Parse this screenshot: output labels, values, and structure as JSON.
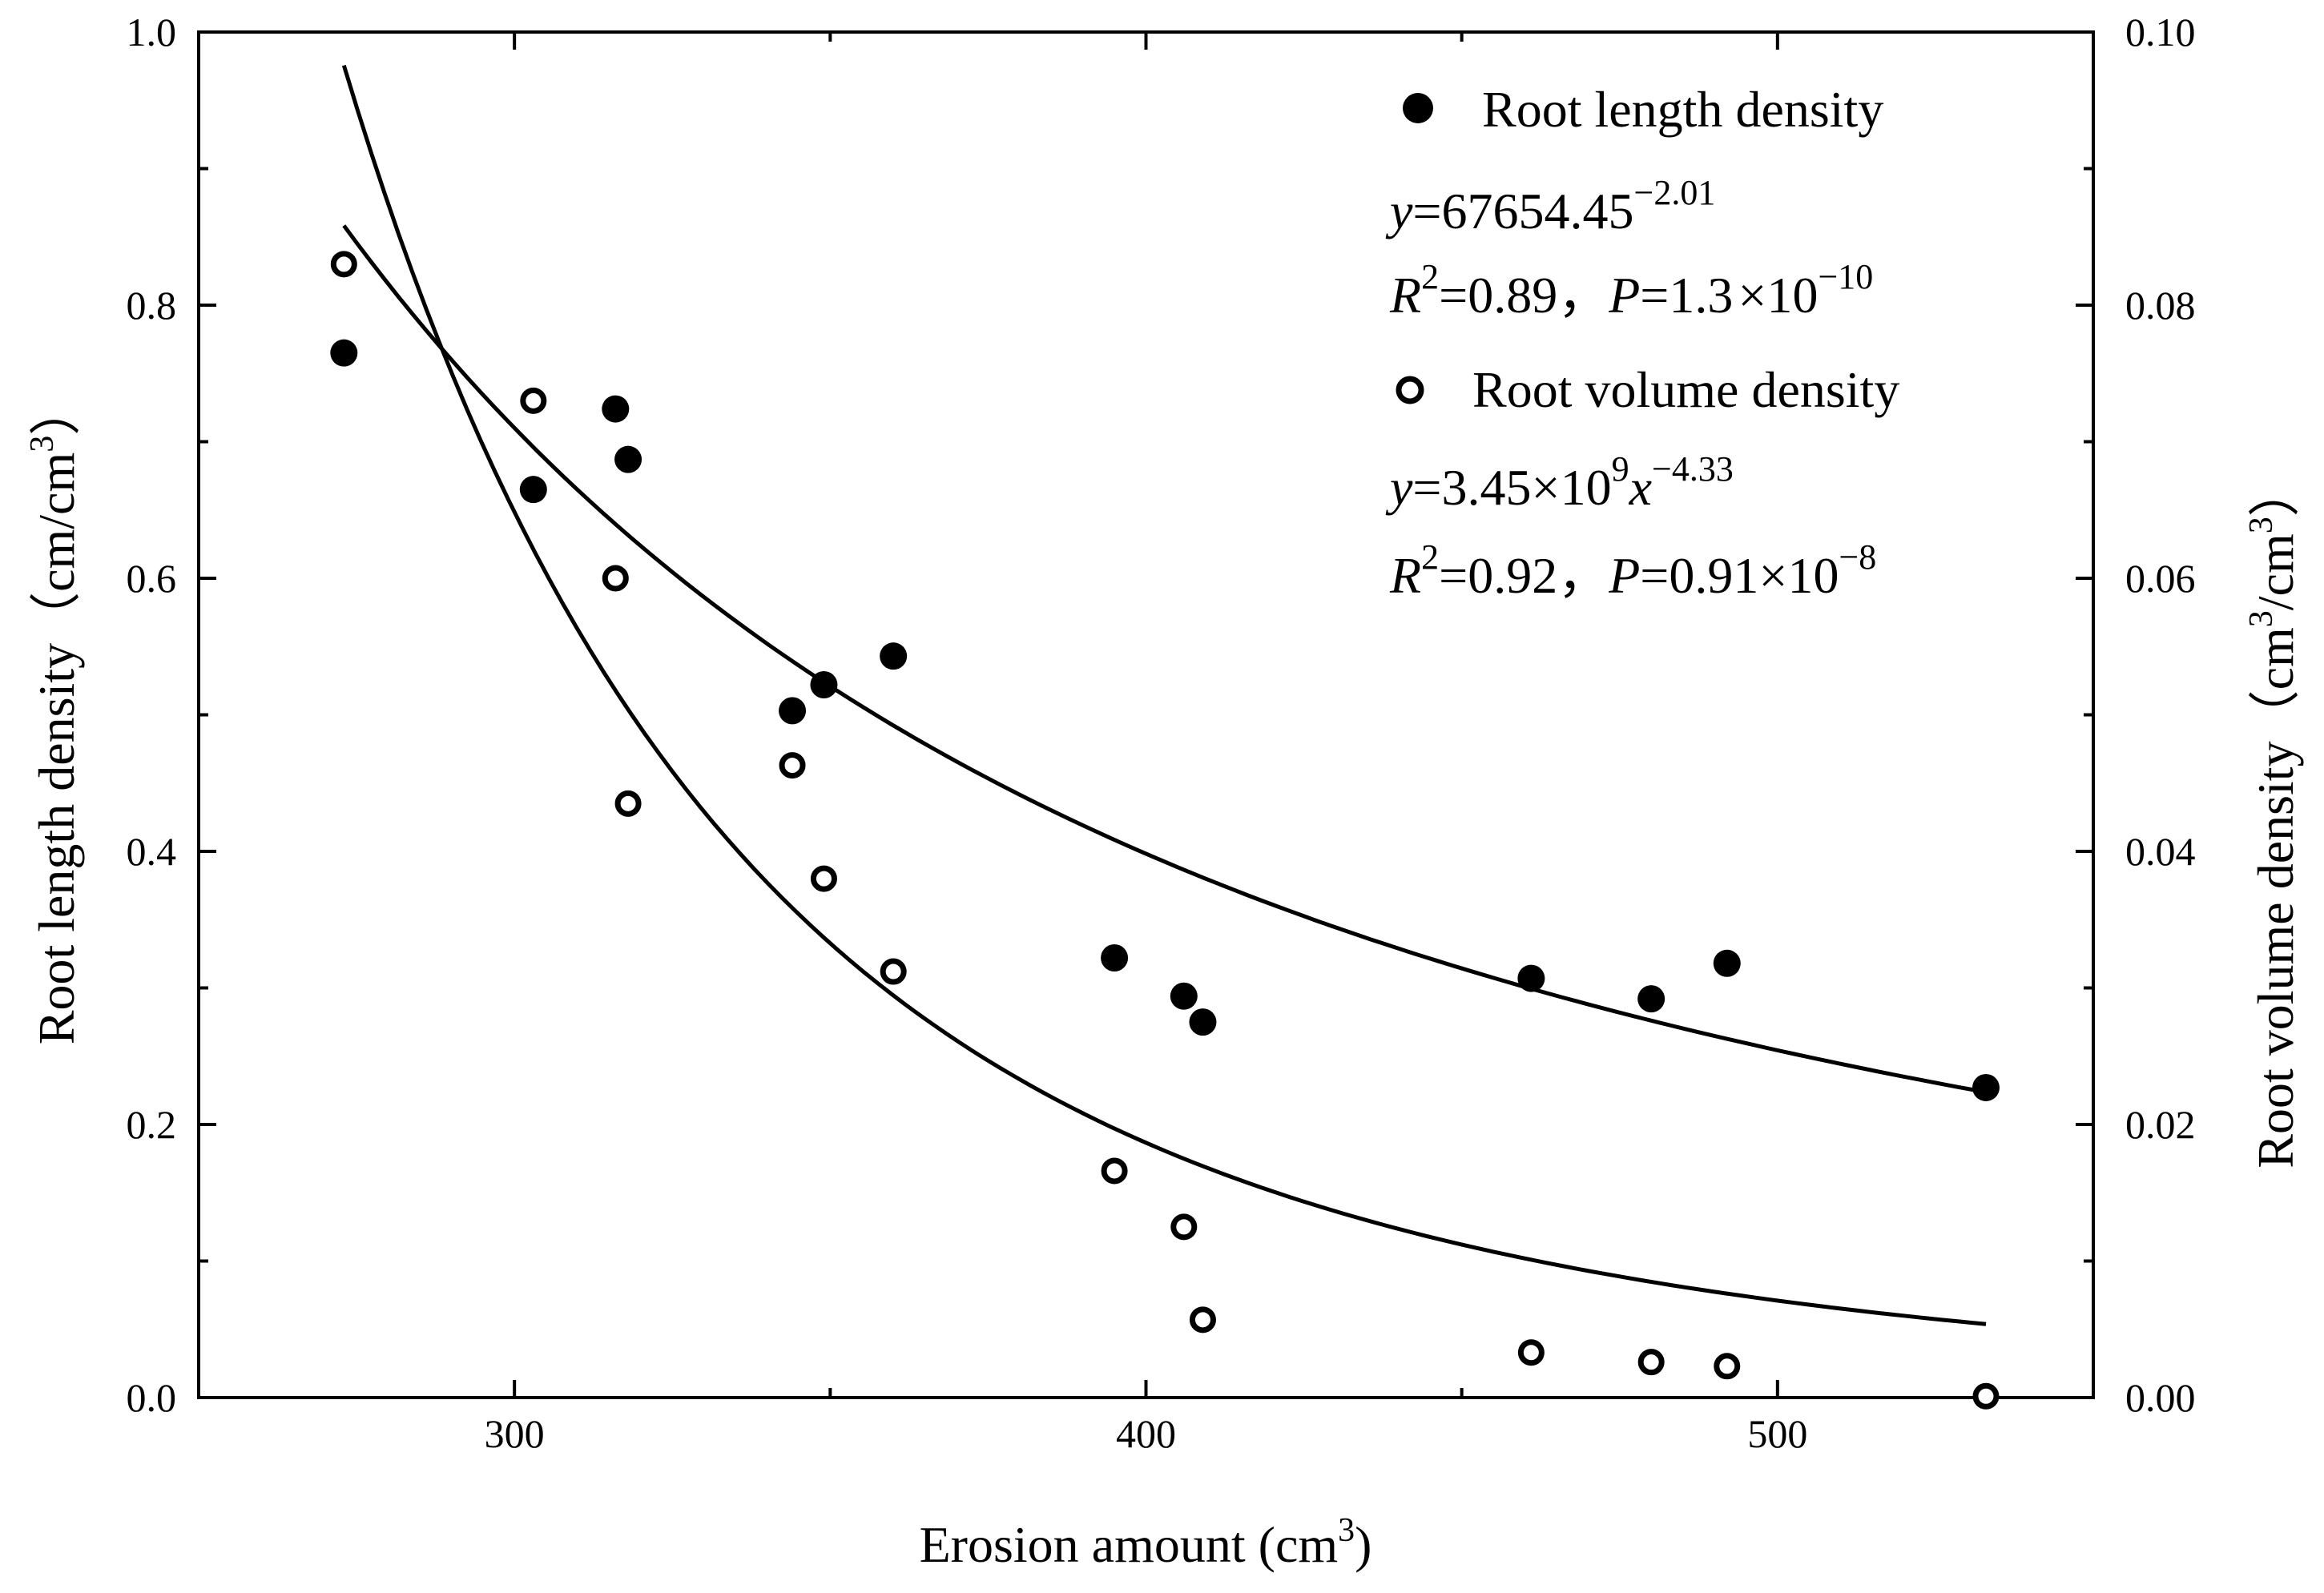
{
  "chart_data": {
    "type": "scatter",
    "xlabel_main": "Erosion amount (cm",
    "xlabel_sup": "3",
    "xlabel_close": ")",
    "ylabel_left": {
      "main": "Root length density（cm/cm",
      "sup": "3",
      "close": "）"
    },
    "ylabel_right": {
      "main": "Root volume density（cm",
      "sup1": "3",
      "mid": "/cm",
      "sup2": "3",
      "close": "）"
    },
    "xlim": [
      250,
      550
    ],
    "ylim_left": [
      0.0,
      1.0
    ],
    "ylim_right": [
      0.0,
      0.1
    ],
    "x_ticks": [
      "300",
      "400",
      "500"
    ],
    "y_left_ticks": [
      "0.0",
      "0.2",
      "0.4",
      "0.6",
      "0.8",
      "1.0"
    ],
    "y_right_ticks": [
      "0.00",
      "0.02",
      "0.04",
      "0.06",
      "0.08",
      "0.10"
    ],
    "series": [
      {
        "name": "Root length density",
        "axis": "left",
        "marker": "filled-circle",
        "points": [
          [
            273,
            0.765
          ],
          [
            303,
            0.665
          ],
          [
            316,
            0.724
          ],
          [
            318,
            0.687
          ],
          [
            344,
            0.503
          ],
          [
            349,
            0.522
          ],
          [
            360,
            0.543
          ],
          [
            395,
            0.322
          ],
          [
            406,
            0.294
          ],
          [
            409,
            0.275
          ],
          [
            461,
            0.307
          ],
          [
            480,
            0.292
          ],
          [
            492,
            0.318
          ],
          [
            533,
            0.227
          ]
        ],
        "fit": {
          "coef": 67654.45,
          "exp": -2.01
        },
        "equation": {
          "prefix": "y",
          "body": "=67654.45",
          "sup": "−2.01"
        },
        "stats": {
          "r": "R",
          "r_sup": "2",
          "r_val": "=0.89，",
          "p": "P",
          "p_val": "=1.3",
          "times": "×",
          "ten": "10",
          "p_sup": "−10"
        }
      },
      {
        "name": "Root volume density",
        "axis": "right",
        "marker": "open-circle",
        "points": [
          [
            273,
            0.083
          ],
          [
            303,
            0.073
          ],
          [
            316,
            0.06
          ],
          [
            318,
            0.0435
          ],
          [
            344,
            0.0463
          ],
          [
            349,
            0.038
          ],
          [
            360,
            0.0312
          ],
          [
            395,
            0.0166
          ],
          [
            406,
            0.0125
          ],
          [
            409,
            0.0057
          ],
          [
            461,
            0.0033
          ],
          [
            480,
            0.0026
          ],
          [
            492,
            0.0023
          ],
          [
            533,
            0.0001
          ]
        ],
        "fit": {
          "coef": 3450000000,
          "exp": -4.33
        },
        "equation": {
          "prefix": "y",
          "body": "=3.45×10",
          "sup9": "9",
          "x": "x",
          "sup": "−4.33"
        },
        "stats": {
          "r": "R",
          "r_sup": "2",
          "r_val": "=0.92，",
          "p": "P",
          "p_val": "=0.91×10",
          "p_sup": "−8"
        }
      }
    ],
    "fit_range": [
      273,
      533
    ],
    "legend_location": "top-right"
  }
}
